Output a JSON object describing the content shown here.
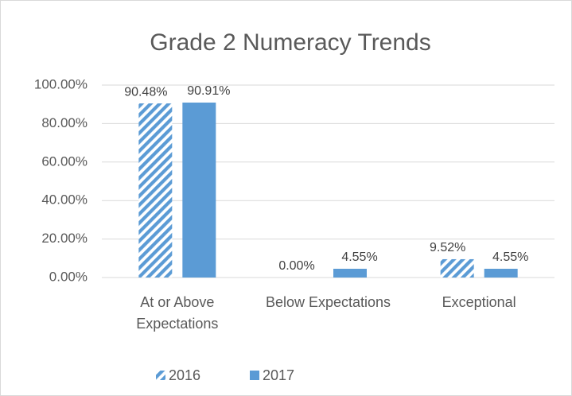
{
  "chart_data": {
    "type": "bar",
    "title": "Grade 2 Numeracy Trends",
    "categories": [
      "At or Above Expectations",
      "Below Expectations",
      "Exceptional"
    ],
    "series": [
      {
        "name": "2016",
        "color": "#5b9bd5",
        "pattern": "hatch",
        "values": [
          90.48,
          0,
          9.52
        ],
        "value_labels": [
          "90.48%",
          "0.00%",
          "9.52%"
        ]
      },
      {
        "name": "2017",
        "color": "#5b9bd5",
        "values": [
          90.91,
          4.55,
          4.55
        ],
        "value_labels": [
          "90.91%",
          "4.55%",
          "4.55%"
        ]
      }
    ],
    "ylim": [
      0,
      100
    ],
    "yticks": [
      {
        "value": 0,
        "label": "0.00%"
      },
      {
        "value": 20,
        "label": "20.00%"
      },
      {
        "value": 40,
        "label": "40.00%"
      },
      {
        "value": 60,
        "label": "60.00%"
      },
      {
        "value": 80,
        "label": "80.00%"
      },
      {
        "value": 100,
        "label": "100.00%"
      }
    ],
    "grid": true,
    "legend": "bottom"
  }
}
